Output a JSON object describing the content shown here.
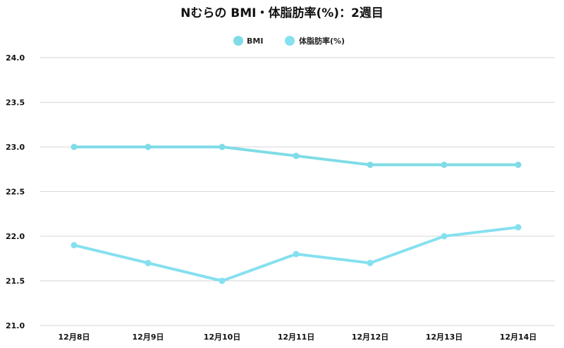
{
  "chart_data": {
    "type": "line",
    "title": "Nむらの BMI・体脂肪率(%)：2週目",
    "xlabel": "",
    "ylabel": "",
    "categories": [
      "12月8日",
      "12月9日",
      "12月10日",
      "12月11日",
      "12月12日",
      "12月13日",
      "12月14日"
    ],
    "ylim": [
      21.0,
      24.0
    ],
    "yticks": [
      "21.0",
      "21.5",
      "22.0",
      "22.5",
      "23.0",
      "23.5",
      "24.0"
    ],
    "grid": true,
    "legend_position": "top-center",
    "series": [
      {
        "name": "BMI",
        "color": "#7fdce6",
        "values": [
          23.0,
          23.0,
          23.0,
          22.9,
          22.8,
          22.8,
          22.8
        ]
      },
      {
        "name": "体脂肪率(%)",
        "color": "#85e0ef",
        "values": [
          21.9,
          21.7,
          21.5,
          21.8,
          21.7,
          22.0,
          22.1
        ]
      }
    ]
  }
}
